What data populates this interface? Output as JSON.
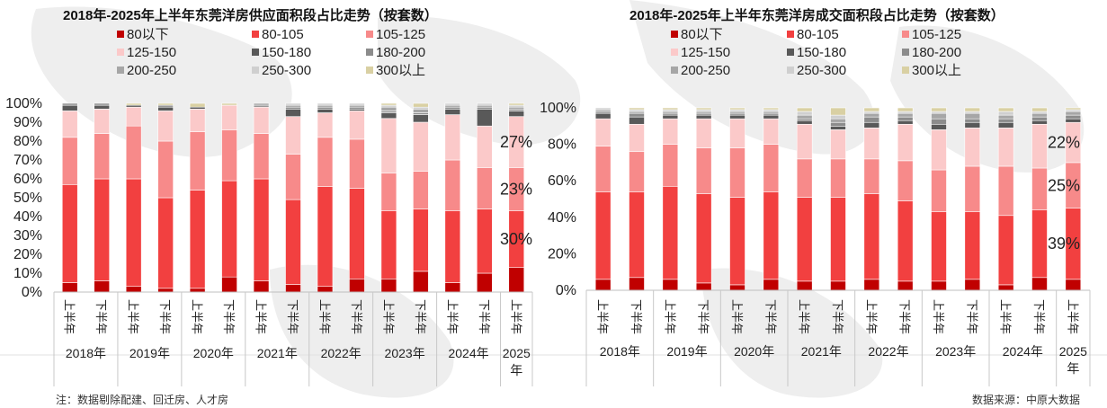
{
  "chart_data": [
    {
      "type": "bar",
      "stacked": true,
      "title": "2018年-2025年上半年东莞洋房供应面积段占比走势（按套数）",
      "categories": [
        "上半年",
        "下半年",
        "上半年",
        "下半年",
        "上半年",
        "下半年",
        "上半年",
        "下半年",
        "上半年",
        "下半年",
        "上半年",
        "下半年",
        "上半年",
        "下半年",
        "上半年"
      ],
      "year_groups": [
        {
          "label": "2018年",
          "span": 2
        },
        {
          "label": "2019年",
          "span": 2
        },
        {
          "label": "2020年",
          "span": 2
        },
        {
          "label": "2021年",
          "span": 2
        },
        {
          "label": "2022年",
          "span": 2
        },
        {
          "label": "2023年",
          "span": 2
        },
        {
          "label": "2024年",
          "span": 2
        },
        {
          "label": "2025年",
          "span": 1
        }
      ],
      "ylim": [
        0,
        100
      ],
      "y_ticks": [
        "0%",
        "10%",
        "20%",
        "30%",
        "40%",
        "50%",
        "60%",
        "70%",
        "80%",
        "90%",
        "100%"
      ],
      "legend_position": "top",
      "grid": false,
      "series": [
        {
          "name": "80以下",
          "color": "#C00000",
          "values": [
            5,
            6,
            3,
            2,
            2,
            8,
            6,
            4,
            3,
            7,
            7,
            11,
            5,
            10,
            13
          ]
        },
        {
          "name": "80-105",
          "color": "#F24040",
          "values": [
            52,
            54,
            57,
            48,
            52,
            51,
            54,
            45,
            53,
            48,
            36,
            33,
            38,
            34,
            30
          ]
        },
        {
          "name": "105-125",
          "color": "#F78A8A",
          "values": [
            25,
            24,
            28,
            30,
            31,
            27,
            24,
            24,
            26,
            26,
            20,
            20,
            27,
            22,
            23
          ]
        },
        {
          "name": "125-150",
          "color": "#FBC9C9",
          "values": [
            14,
            13,
            10,
            16,
            12,
            13,
            14,
            20,
            13,
            15,
            29,
            26,
            24,
            22,
            27
          ]
        },
        {
          "name": "150-180",
          "color": "#595959",
          "values": [
            3,
            2,
            1,
            2,
            1,
            0,
            0,
            4,
            2,
            1,
            3,
            4,
            3,
            9,
            3
          ]
        },
        {
          "name": "180-200",
          "color": "#8C8C8C",
          "values": [
            1,
            1,
            0,
            1,
            0,
            0,
            1,
            1,
            1,
            1,
            1,
            1,
            1,
            1,
            1
          ]
        },
        {
          "name": "200-250",
          "color": "#A6A6A6",
          "values": [
            0,
            0,
            0,
            0,
            0,
            0,
            1,
            1,
            1,
            1,
            2,
            2,
            1,
            1,
            1
          ]
        },
        {
          "name": "250-300",
          "color": "#CFCFCF",
          "values": [
            0,
            0,
            0,
            0,
            0,
            0,
            0,
            1,
            1,
            1,
            1,
            1,
            1,
            1,
            1
          ]
        },
        {
          "name": "300以上",
          "color": "#D9D0A3",
          "values": [
            0,
            0,
            1,
            1,
            2,
            1,
            0,
            0,
            0,
            0,
            1,
            2,
            0,
            0,
            1
          ]
        }
      ],
      "annotations": [
        {
          "text": "27%",
          "series": "125-150",
          "category_index": 14
        },
        {
          "text": "23%",
          "series": "105-125",
          "category_index": 14
        },
        {
          "text": "30%",
          "series": "80-105",
          "category_index": 14
        }
      ]
    },
    {
      "type": "bar",
      "stacked": true,
      "title": "2018年-2025年上半年东莞洋房成交面积段占比走势（按套数）",
      "categories": [
        "上半年",
        "下半年",
        "上半年",
        "下半年",
        "上半年",
        "下半年",
        "上半年",
        "下半年",
        "上半年",
        "下半年",
        "上半年",
        "下半年",
        "上半年",
        "下半年",
        "上半年"
      ],
      "year_groups": [
        {
          "label": "2018年",
          "span": 2
        },
        {
          "label": "2019年",
          "span": 2
        },
        {
          "label": "2020年",
          "span": 2
        },
        {
          "label": "2021年",
          "span": 2
        },
        {
          "label": "2022年",
          "span": 2
        },
        {
          "label": "2023年",
          "span": 2
        },
        {
          "label": "2024年",
          "span": 2
        },
        {
          "label": "2025年",
          "span": 1
        }
      ],
      "ylim": [
        0,
        100
      ],
      "y_ticks": [
        "0%",
        "20%",
        "40%",
        "60%",
        "80%",
        "100%"
      ],
      "legend_position": "top",
      "grid": false,
      "series": [
        {
          "name": "80以下",
          "color": "#C00000",
          "values": [
            6,
            7,
            6,
            4,
            3,
            6,
            5,
            5,
            6,
            5,
            5,
            6,
            3,
            7,
            6
          ]
        },
        {
          "name": "80-105",
          "color": "#F24040",
          "values": [
            48,
            47,
            51,
            49,
            48,
            48,
            46,
            46,
            47,
            44,
            38,
            37,
            38,
            37,
            39
          ]
        },
        {
          "name": "105-125",
          "color": "#F78A8A",
          "values": [
            25,
            22,
            23,
            25,
            27,
            26,
            21,
            21,
            19,
            22,
            23,
            25,
            27,
            23,
            25
          ]
        },
        {
          "name": "125-150",
          "color": "#FBC9C9",
          "values": [
            15,
            15,
            14,
            16,
            16,
            14,
            19,
            16,
            17,
            20,
            22,
            21,
            21,
            24,
            22
          ]
        },
        {
          "name": "150-180",
          "color": "#595959",
          "values": [
            3,
            4,
            2,
            2,
            2,
            2,
            2,
            2,
            3,
            2,
            3,
            3,
            3,
            2,
            2
          ]
        },
        {
          "name": "180-200",
          "color": "#8C8C8C",
          "values": [
            1,
            2,
            1,
            1,
            1,
            1,
            1,
            2,
            3,
            2,
            3,
            2,
            2,
            2,
            2
          ]
        },
        {
          "name": "200-250",
          "color": "#A6A6A6",
          "values": [
            1,
            1,
            1,
            1,
            1,
            1,
            2,
            2,
            2,
            2,
            3,
            3,
            2,
            2,
            2
          ]
        },
        {
          "name": "250-300",
          "color": "#CFCFCF",
          "values": [
            1,
            1,
            1,
            1,
            1,
            1,
            2,
            2,
            1,
            1,
            1,
            1,
            2,
            1,
            1
          ]
        },
        {
          "name": "300以上",
          "color": "#D9D0A3",
          "values": [
            0,
            1,
            1,
            1,
            1,
            1,
            2,
            4,
            2,
            2,
            2,
            2,
            2,
            2,
            1
          ]
        }
      ],
      "annotations": [
        {
          "text": "22%",
          "series": "125-150",
          "category_index": 14
        },
        {
          "text": "25%",
          "series": "105-125",
          "category_index": 14
        },
        {
          "text": "39%",
          "series": "80-105",
          "category_index": 14
        }
      ]
    }
  ],
  "footer": {
    "note": "注：数据剔除配建、回迁房、人才房",
    "source": "数据来源：中原大数据"
  }
}
